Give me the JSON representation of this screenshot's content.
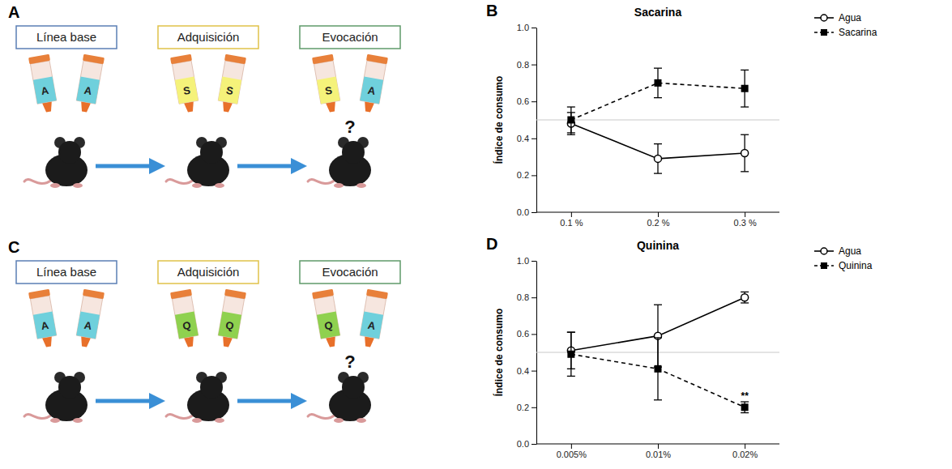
{
  "diagrams": [
    {
      "letter": "A",
      "stages": [
        {
          "label": "Línea base",
          "color": "#5b7fb5",
          "bottles": [
            {
              "text": "A",
              "color": "#6fd0dc"
            },
            {
              "text": "A",
              "color": "#6fd0dc"
            }
          ]
        },
        {
          "label": "Adquisición",
          "color": "#e0c24a",
          "bottles": [
            {
              "text": "S",
              "color": "#f5f27a"
            },
            {
              "text": "S",
              "color": "#f5f27a"
            }
          ]
        },
        {
          "label": "Evocación",
          "color": "#5f9a6a",
          "question": "?",
          "bottles": [
            {
              "text": "S",
              "color": "#f5f27a"
            },
            {
              "text": "A",
              "color": "#6fd0dc"
            }
          ]
        }
      ]
    },
    {
      "letter": "C",
      "stages": [
        {
          "label": "Línea base",
          "color": "#5b7fb5",
          "bottles": [
            {
              "text": "A",
              "color": "#6fd0dc"
            },
            {
              "text": "A",
              "color": "#6fd0dc"
            }
          ]
        },
        {
          "label": "Adquisición",
          "color": "#e0c24a",
          "bottles": [
            {
              "text": "Q",
              "color": "#8fd14f"
            },
            {
              "text": "Q",
              "color": "#8fd14f"
            }
          ]
        },
        {
          "label": "Evocación",
          "color": "#5f9a6a",
          "question": "?",
          "bottles": [
            {
              "text": "Q",
              "color": "#8fd14f"
            },
            {
              "text": "A",
              "color": "#6fd0dc"
            }
          ]
        }
      ]
    }
  ],
  "chart_data": [
    {
      "panel": "B",
      "type": "line",
      "title": "Sacarina",
      "ylabel": "Índice de consumo",
      "categories": [
        "0.1 %",
        "0.2 %",
        "0.3 %"
      ],
      "series": [
        {
          "name": "Agua",
          "color": "#000000",
          "marker": "circle",
          "line_style": "solid",
          "values": [
            0.48,
            0.29,
            0.32
          ],
          "errors": [
            0.06,
            0.08,
            0.1
          ]
        },
        {
          "name": "Sacarina",
          "color": "#000000",
          "marker": "square",
          "line_style": "dashed",
          "values": [
            0.5,
            0.7,
            0.67
          ],
          "errors": [
            0.07,
            0.08,
            0.1
          ]
        }
      ],
      "ylim": [
        0,
        1
      ],
      "yticks": [
        {
          "value": 0,
          "label": "0.0"
        },
        0.2,
        0.4,
        0.6,
        0.8,
        {
          "value": 1,
          "label": "1.0"
        }
      ],
      "hline": 0.5,
      "legend": "right"
    },
    {
      "panel": "D",
      "type": "line",
      "title": "Quinina",
      "ylabel": "Índice de consumo",
      "categories": [
        "0.005%",
        "0.01%",
        "0.02%"
      ],
      "series": [
        {
          "name": "Agua",
          "color": "#000000",
          "marker": "circle",
          "line_style": "solid",
          "values": [
            0.51,
            0.59,
            0.8
          ],
          "errors": [
            0.1,
            0.17,
            0.03
          ]
        },
        {
          "name": "Quinina",
          "color": "#000000",
          "marker": "square",
          "line_style": "dashed",
          "values": [
            0.49,
            0.41,
            0.2
          ],
          "errors": [
            0.12,
            0.17,
            0.03
          ],
          "annotations": [
            null,
            null,
            "**"
          ]
        }
      ],
      "ylim": [
        0,
        1
      ],
      "yticks": [
        {
          "value": 0,
          "label": "0.0"
        },
        0.2,
        0.4,
        0.6,
        0.8,
        {
          "value": 1,
          "label": "1.0"
        }
      ],
      "hline": 0.5,
      "legend": "right"
    }
  ]
}
